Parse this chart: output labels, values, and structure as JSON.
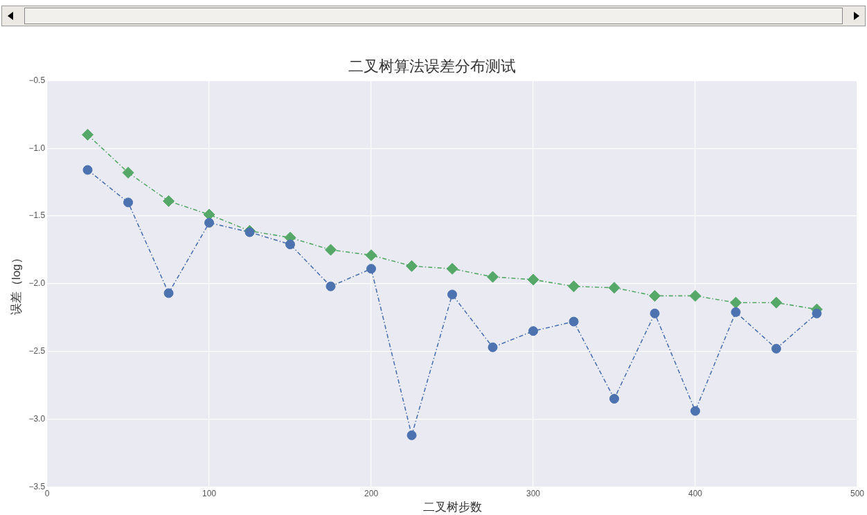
{
  "chart_data": {
    "type": "line",
    "title": "二叉树算法误差分布测试",
    "xlabel": "二叉树步数",
    "ylabel": "误差（log）",
    "x": [
      25,
      50,
      75,
      100,
      125,
      150,
      175,
      200,
      225,
      250,
      275,
      300,
      325,
      350,
      375,
      400,
      425,
      450,
      475
    ],
    "series": [
      {
        "color": "#4c72b0",
        "marker": "circle",
        "line_style": "dashed",
        "values": [
          -1.16,
          -1.4,
          -2.07,
          -1.55,
          -1.62,
          -1.71,
          -2.02,
          -1.89,
          -3.12,
          -2.08,
          -2.47,
          -2.35,
          -2.28,
          -2.85,
          -2.22,
          -2.94,
          -2.21,
          -2.48,
          -2.22
        ]
      },
      {
        "color": "#55a868",
        "marker": "diamond",
        "line_style": "dashed",
        "values": [
          -0.9,
          -1.18,
          -1.39,
          -1.49,
          -1.61,
          -1.66,
          -1.75,
          -1.79,
          -1.87,
          -1.89,
          -1.95,
          -1.97,
          -2.02,
          -2.03,
          -2.09,
          -2.09,
          -2.14,
          -2.14,
          -2.19
        ]
      }
    ],
    "xlim": [
      0,
      500
    ],
    "xticks": [
      0,
      100,
      200,
      300,
      400,
      500
    ],
    "ylim": [
      -3.5,
      -0.5
    ],
    "yticks": [
      {
        "value": -3.5,
        "label": "−3.5"
      },
      {
        "value": -3.0,
        "label": "−3.0"
      },
      {
        "value": -2.5,
        "label": "−2.5"
      },
      {
        "value": -2.0,
        "label": "−2.0"
      },
      {
        "value": -1.5,
        "label": "−1.5"
      },
      {
        "value": -1.0,
        "label": "−1.0"
      },
      {
        "value": -0.5,
        "label": "−0.5"
      }
    ],
    "grid": true,
    "legend": false
  }
}
